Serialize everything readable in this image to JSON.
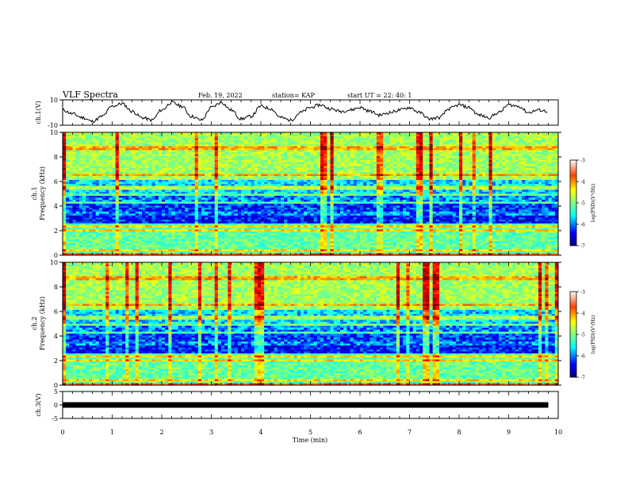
{
  "header": {
    "title": "VLF Spectra",
    "date": "Feb. 19, 2022",
    "station": "station= KAP",
    "start": "start  UT  =   22: 40: 1"
  },
  "chart_data": [
    {
      "type": "line",
      "panel": "ch1-waveform",
      "ylabel": "ch.1(V)",
      "ylim": [
        -10,
        10
      ],
      "yticks": [
        {
          "v": 10,
          "label": "10"
        },
        {
          "v": -10,
          "label": "-10"
        }
      ],
      "xlim": [
        0,
        10
      ],
      "x": [
        0.0,
        0.2,
        0.4,
        0.6,
        0.8,
        1.0,
        1.2,
        1.4,
        1.6,
        1.8,
        2.0,
        2.2,
        2.4,
        2.6,
        2.8,
        3.0,
        3.2,
        3.4,
        3.6,
        3.8,
        4.0,
        4.2,
        4.4,
        4.6,
        4.8,
        5.0,
        5.2,
        5.4,
        5.6,
        5.8,
        6.0,
        6.2,
        6.4,
        6.6,
        6.8,
        7.0,
        7.2,
        7.4,
        7.6,
        7.8,
        8.0,
        8.2,
        8.4,
        8.6,
        8.8,
        9.0,
        9.2,
        9.4,
        9.6,
        9.8
      ],
      "values": [
        2,
        -1,
        -4,
        -7,
        -3,
        5,
        7,
        1,
        -4,
        -6,
        2,
        8,
        5,
        -3,
        -6,
        4,
        8,
        2,
        -5,
        -3,
        5,
        3,
        -4,
        -6,
        0,
        4,
        6,
        3,
        1,
        2,
        4,
        1,
        -2,
        0,
        2,
        4,
        0,
        -5,
        -4,
        3,
        6,
        4,
        -2,
        -4,
        0,
        6,
        5,
        0,
        2,
        1
      ]
    },
    {
      "type": "heatmap",
      "panel": "ch1-spectrogram",
      "ylabel": "ch.1",
      "ylabel2": "Frequency  (kHz)",
      "ylim": [
        0,
        10
      ],
      "yticks": [
        0,
        2,
        4,
        6,
        8,
        10
      ],
      "xlim": [
        0,
        10
      ],
      "colorbar": {
        "ticks": [
          "-3",
          "-4",
          "-5",
          "-6",
          "-7"
        ],
        "label": "log(PSD)(V²/Hz)",
        "range": [
          -7,
          -3
        ]
      }
    },
    {
      "type": "heatmap",
      "panel": "ch2-spectrogram",
      "ylabel": "ch.2",
      "ylabel2": "Frequency  (kHz)",
      "ylim": [
        0,
        10
      ],
      "yticks": [
        0,
        2,
        4,
        6,
        8,
        10
      ],
      "xlim": [
        0,
        10
      ],
      "colorbar": {
        "ticks": [
          "-3",
          "-4",
          "-5",
          "-6",
          "-7"
        ],
        "label": "log(PSD)(V²/Hz)",
        "range": [
          -7,
          -3
        ]
      }
    },
    {
      "type": "line",
      "panel": "ch3-waveform",
      "ylabel": "ch.3(V)",
      "ylim": [
        -5,
        5
      ],
      "yticks": [
        {
          "v": 5,
          "label": "5"
        },
        {
          "v": 0,
          "label": "0"
        },
        {
          "v": -5,
          "label": "-5"
        }
      ],
      "xlim": [
        0,
        9.8
      ],
      "values_constant": 0
    }
  ],
  "xaxis": {
    "label": "Time  (min)",
    "ticks": [
      "0",
      "1",
      "2",
      "3",
      "4",
      "5",
      "6",
      "7",
      "8",
      "9",
      "10"
    ]
  },
  "colors": {
    "ink": "#000000",
    "colormap": [
      "#00007f",
      "#0000ff",
      "#00ffff",
      "#7fff7f",
      "#ffff00",
      "#ff7f00",
      "#ff0000",
      "#7f0000"
    ]
  }
}
